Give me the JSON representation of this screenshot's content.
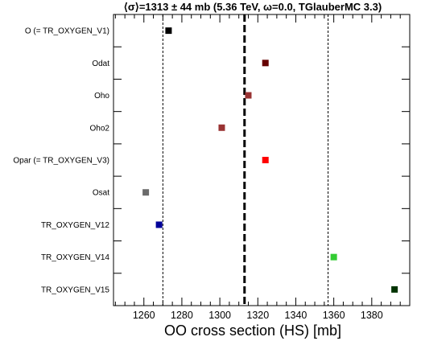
{
  "chart_data": {
    "type": "scatter",
    "title": "⟨σ⟩=1313 ± 44 mb (5.36 TeV, ω=0.0, TGlauberMC 3.3)",
    "xlabel": "OO cross section (HS) [mb]",
    "ylabel": "",
    "xlim": [
      1244,
      1400
    ],
    "xticks": [
      1260,
      1280,
      1300,
      1320,
      1340,
      1360,
      1380
    ],
    "mean": 1313,
    "band": [
      1270,
      1357
    ],
    "grid": false,
    "legend": "none",
    "points": [
      {
        "label": "O (= TR_OXYGEN_V1)",
        "x": 1273,
        "color": "#000000"
      },
      {
        "label": "Odat",
        "x": 1324,
        "color": "#660000"
      },
      {
        "label": "Oho",
        "x": 1315,
        "color": "#993333"
      },
      {
        "label": "Oho2",
        "x": 1301,
        "color": "#993333"
      },
      {
        "label": "Opar (= TR_OXYGEN_V3)",
        "x": 1324,
        "color": "#ff0000"
      },
      {
        "label": "Osat",
        "x": 1261,
        "color": "#6b6b6b"
      },
      {
        "label": "TR_OXYGEN_V12",
        "x": 1268,
        "color": "#000099"
      },
      {
        "label": "TR_OXYGEN_V14",
        "x": 1360,
        "color": "#33cc33"
      },
      {
        "label": "TR_OXYGEN_V15",
        "x": 1392,
        "color": "#003300"
      }
    ]
  }
}
